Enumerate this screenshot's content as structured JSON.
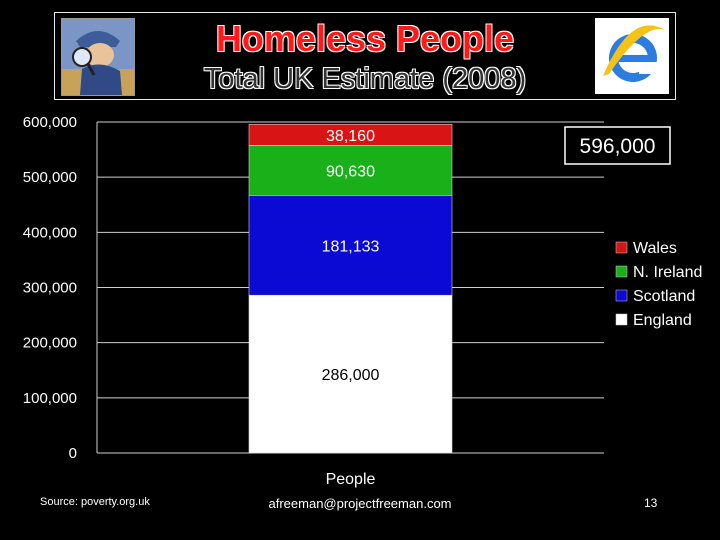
{
  "slide": {
    "title": "Homeless People",
    "subtitle": "Total UK Estimate (2008)",
    "total_label": "596,000",
    "footer_source": "Source: poverty.org.uk",
    "footer_email": "afreeman@projectfreeman.com",
    "page_number": "13"
  },
  "chart_data": {
    "type": "bar",
    "stacked": true,
    "categories": [
      "People"
    ],
    "series": [
      {
        "name": "England",
        "values": [
          286000
        ],
        "label": "286,000",
        "color": "#ffffff",
        "text_color": "#000000"
      },
      {
        "name": "Scotland",
        "values": [
          181133
        ],
        "label": "181,133",
        "color": "#0a0ad4",
        "text_color": "#ffffff"
      },
      {
        "name": "N. Ireland",
        "values": [
          90630
        ],
        "label": "90,630",
        "color": "#1ab01a",
        "text_color": "#ffffff"
      },
      {
        "name": "Wales",
        "values": [
          38160
        ],
        "label": "38,160",
        "color": "#d81414",
        "text_color": "#ffffff"
      }
    ],
    "legend_order": [
      "Wales",
      "N. Ireland",
      "Scotland",
      "England"
    ],
    "y_ticks": [
      "0",
      "100,000",
      "200,000",
      "300,000",
      "400,000",
      "500,000",
      "600,000"
    ],
    "ylim": [
      0,
      600000
    ],
    "grid": true,
    "legend_position": "right"
  }
}
